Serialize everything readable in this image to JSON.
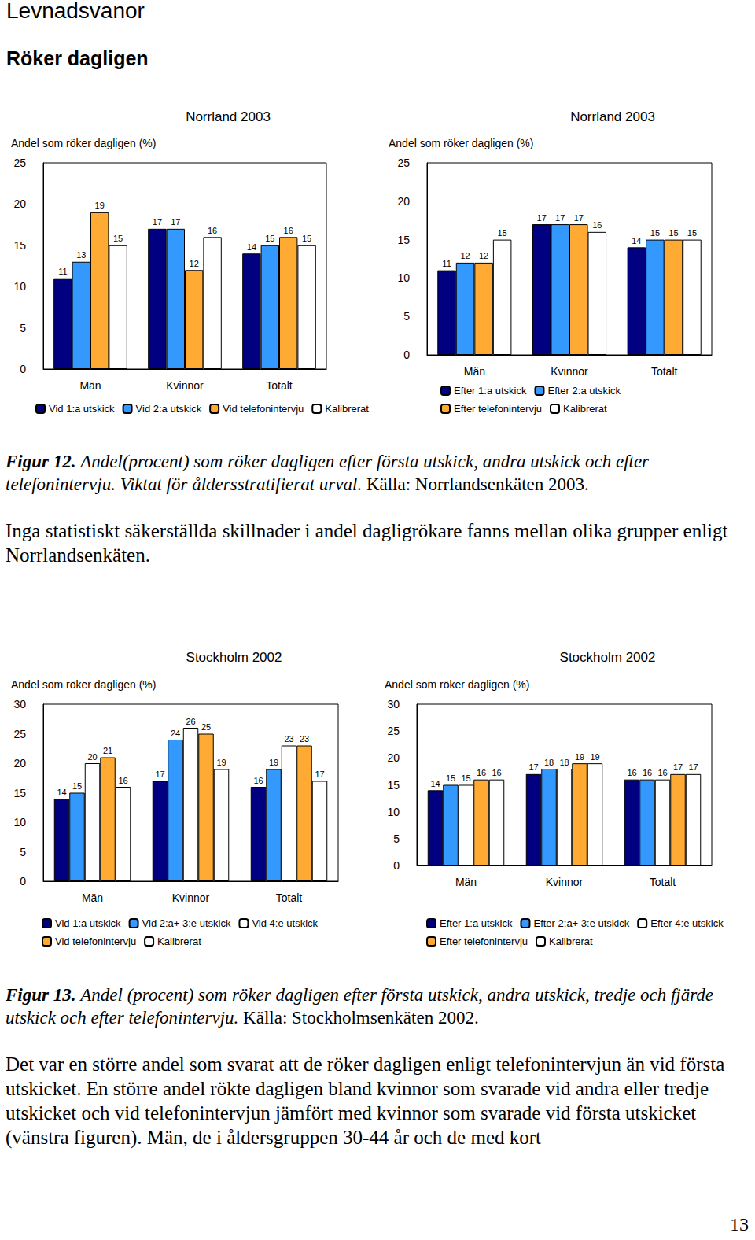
{
  "page": {
    "header": "Levnadsvanor",
    "section": "Röker dagligen",
    "figures": [
      {
        "label": "Figur 12.",
        "caption": "Andel(procent) som röker dagligen efter första utskick, andra utskick och efter telefonintervju. Viktat för åldersstratifierat urval.",
        "source": "Källa: Norrlandsenkäten 2003."
      },
      {
        "label": "Figur 13.",
        "caption": "Andel (procent) som röker dagligen efter första utskick, andra utskick, tredje och fjärde utskick och efter telefonintervju.",
        "source": "Källa: Stockholmsenkäten 2002."
      }
    ],
    "paragraphs": [
      "Inga statistiskt säkerställda skillnader i andel dagligrökare fanns mellan olika grupper enligt Norrlandsenkäten.",
      "Det var en större andel som svarat att de röker dagligen enligt telefonintervjun än vid första utskicket. En större andel rökte dagligen bland kvinnor som svarade vid andra eller tredje utskicket och vid telefonintervjun jämfört med kvinnor som svarade vid första utskicket (vänstra figuren). Män, de i åldersgruppen 30-44 år och de med kort"
    ],
    "page_number": 13
  },
  "chart_data": [
    {
      "type": "bar",
      "title": "Norrland 2003",
      "y_label": "Andel som röker dagligen (%)",
      "categories": [
        "Män",
        "Kvinnor",
        "Totalt"
      ],
      "series": [
        {
          "name": "Vid 1:a utskick",
          "color": "#000080",
          "values": [
            11,
            17,
            14
          ]
        },
        {
          "name": "Vid 2:a utskick",
          "color": "#3399ff",
          "values": [
            13,
            17,
            15
          ]
        },
        {
          "name": "Vid telefonintervju",
          "color": "#ffaa33",
          "values": [
            19,
            12,
            16
          ]
        },
        {
          "name": "Kalibrerat",
          "color": "#ffffff",
          "values": [
            15,
            16,
            15
          ]
        }
      ],
      "ylim": [
        0,
        25
      ],
      "yticks": [
        0,
        5,
        10,
        15,
        20,
        25
      ],
      "grid": false,
      "legend": "bottom",
      "data_labels": true
    },
    {
      "type": "bar",
      "title": "Norrland 2003",
      "y_label": "Andel som röker dagligen (%)",
      "categories": [
        "Män",
        "Kvinnor",
        "Totalt"
      ],
      "series": [
        {
          "name": "Efter 1:a utskick",
          "color": "#000080",
          "values": [
            11,
            17,
            14
          ]
        },
        {
          "name": "Efter 2:a utskick",
          "color": "#3399ff",
          "values": [
            12,
            17,
            15
          ]
        },
        {
          "name": "Efter telefonintervju",
          "color": "#ffaa33",
          "values": [
            12,
            17,
            15
          ]
        },
        {
          "name": "Kalibrerat",
          "color": "#ffffff",
          "values": [
            15,
            16,
            15
          ]
        }
      ],
      "ylim": [
        0,
        25
      ],
      "yticks": [
        0,
        5,
        10,
        15,
        20,
        25
      ],
      "grid": false,
      "legend": "bottom",
      "data_labels": true
    },
    {
      "type": "bar",
      "title": "Stockholm 2002",
      "y_label": "Andel som röker dagligen (%)",
      "categories": [
        "Män",
        "Kvinnor",
        "Totalt"
      ],
      "series": [
        {
          "name": "Vid 1:a utskick",
          "color": "#000080",
          "values": [
            14,
            17,
            16
          ]
        },
        {
          "name": "Vid 2:a+ 3:e utskick",
          "color": "#3399ff",
          "values": [
            15,
            24,
            19
          ]
        },
        {
          "name": "Vid 4:e utskick",
          "color": "#ffffff",
          "values": [
            20,
            26,
            23
          ]
        },
        {
          "name": "Vid telefonintervju",
          "color": "#ffaa33",
          "values": [
            21,
            25,
            23
          ]
        },
        {
          "name": "Kalibrerat",
          "color": "#ffffff",
          "values": [
            16,
            19,
            17
          ]
        }
      ],
      "ylim": [
        0,
        30
      ],
      "yticks": [
        0,
        5,
        10,
        15,
        20,
        25,
        30
      ],
      "grid": false,
      "legend": "bottom",
      "data_labels": true
    },
    {
      "type": "bar",
      "title": "Stockholm 2002",
      "y_label": "Andel som röker dagligen (%)",
      "categories": [
        "Män",
        "Kvinnor",
        "Totalt"
      ],
      "series": [
        {
          "name": "Efter 1:a utskick",
          "color": "#000080",
          "values": [
            14,
            17,
            16
          ]
        },
        {
          "name": "Efter 2:a+ 3:e utskick",
          "color": "#3399ff",
          "values": [
            15,
            18,
            16
          ]
        },
        {
          "name": "Efter 4:e utskick",
          "color": "#ffffff",
          "values": [
            15,
            18,
            16
          ]
        },
        {
          "name": "Efter telefonintervju",
          "color": "#ffaa33",
          "values": [
            16,
            19,
            17
          ]
        },
        {
          "name": "Kalibrerat",
          "color": "#ffffff",
          "values": [
            16,
            19,
            17
          ]
        }
      ],
      "ylim": [
        0,
        30
      ],
      "yticks": [
        0,
        5,
        10,
        15,
        20,
        25,
        30
      ],
      "grid": false,
      "legend": "bottom",
      "data_labels": true
    }
  ]
}
